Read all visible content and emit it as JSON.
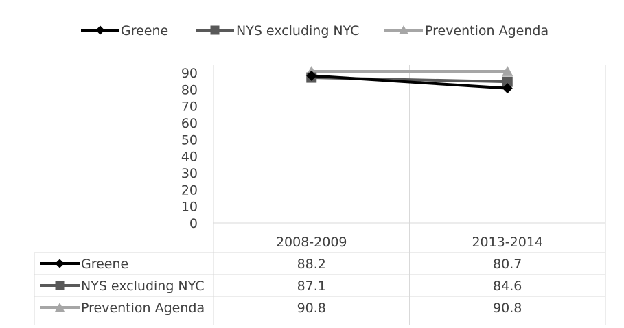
{
  "chart_data": {
    "type": "line",
    "categories": [
      "2008-2009",
      "2013-2014"
    ],
    "series": [
      {
        "name": "Greene",
        "values": [
          88.2,
          80.7
        ],
        "color": "#000000",
        "marker": "diamond"
      },
      {
        "name": "NYS excluding NYC",
        "values": [
          87.1,
          84.6
        ],
        "color": "#595959",
        "marker": "square"
      },
      {
        "name": "Prevention Agenda",
        "values": [
          90.8,
          90.8
        ],
        "color": "#a6a6a6",
        "marker": "triangle"
      }
    ],
    "yticks": [
      "90",
      "80",
      "70",
      "60",
      "50",
      "40",
      "30",
      "20",
      "10",
      "0"
    ],
    "ylim": [
      0,
      90
    ],
    "legend_position": "top",
    "data_table": true,
    "grid": "vertical-category-lines"
  }
}
